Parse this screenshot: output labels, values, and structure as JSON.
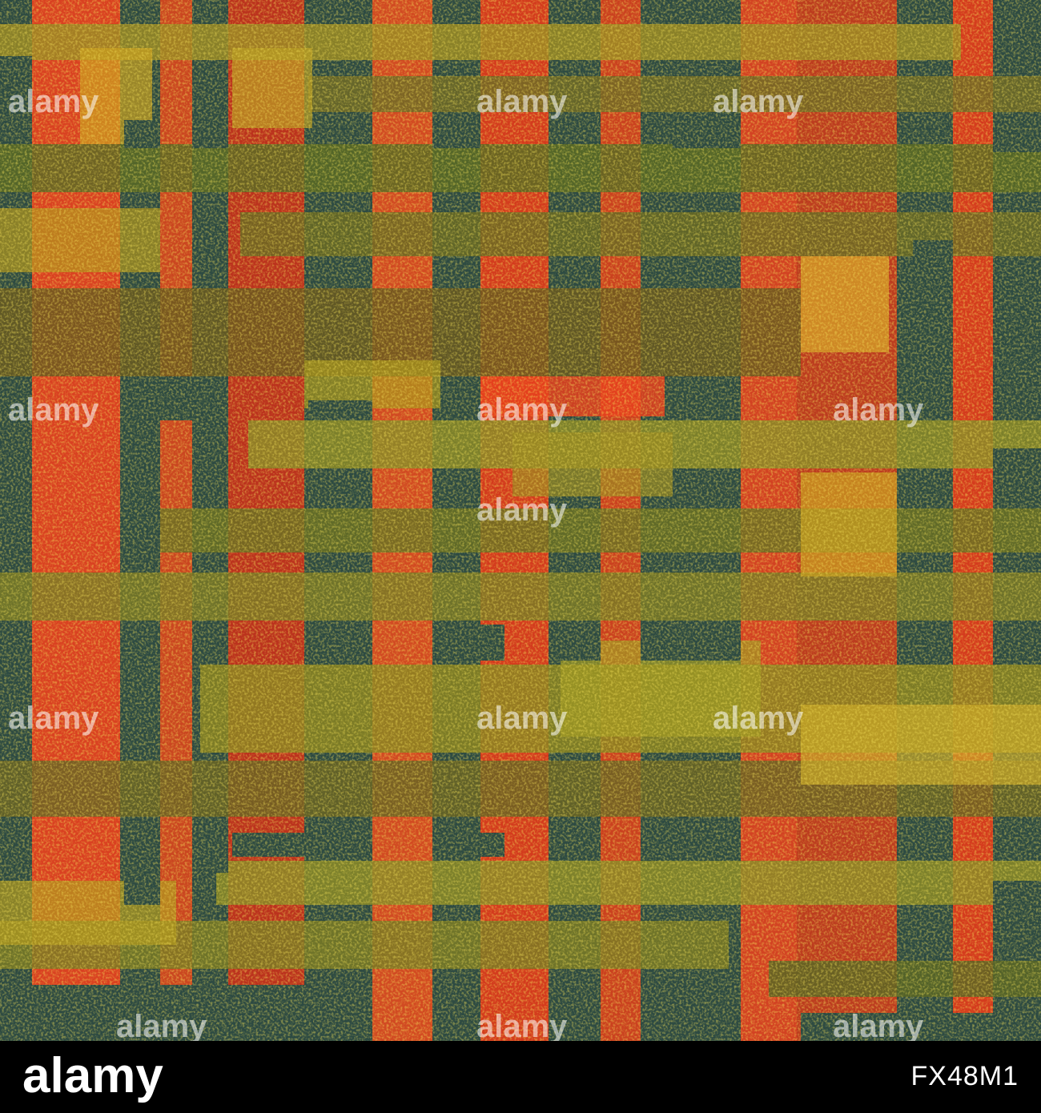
{
  "image": {
    "kind": "abstract plaid grunge texture",
    "colors": {
      "background_dark_teal": "#2d4a42",
      "red_orange": "#e8401e",
      "deep_red": "#c8301a",
      "mustard_yellow": "#c9a020",
      "olive_green": "#5a6a24",
      "bright_yellow": "#f0d830"
    }
  },
  "watermark": {
    "text": "alamy",
    "repeated": true
  },
  "footer": {
    "logo_text": "alamy",
    "image_id": "FX48M1",
    "background": "#000000",
    "text_color": "#ffffff"
  }
}
